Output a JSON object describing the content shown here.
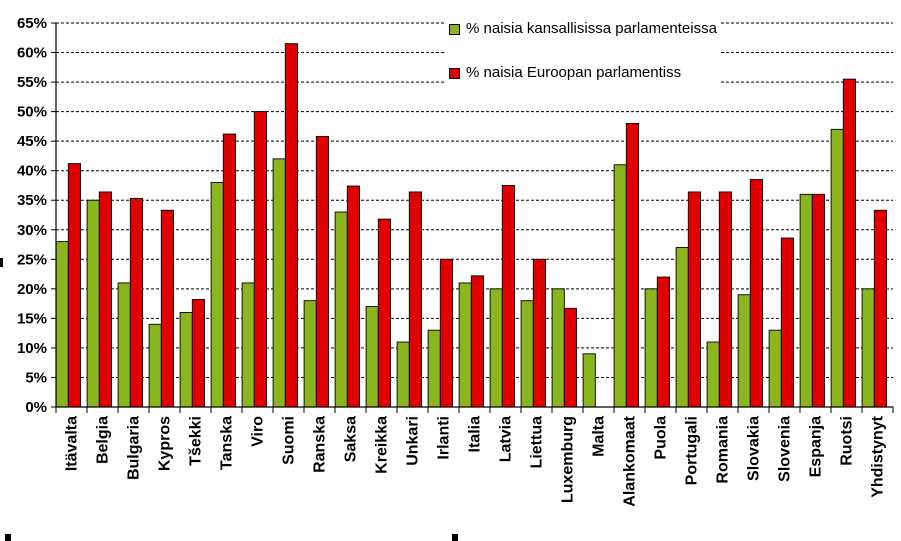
{
  "chart_data": {
    "type": "bar",
    "title": "",
    "xlabel": "",
    "ylabel": "",
    "ylim": [
      0,
      65
    ],
    "y_ticks": [
      "0%",
      "5%",
      "10%",
      "15%",
      "20%",
      "25%",
      "30%",
      "35%",
      "40%",
      "45%",
      "50%",
      "55%",
      "60%",
      "65%"
    ],
    "grid": "horizontal dashed",
    "legend_position": "top-center",
    "categories": [
      "Itävalta",
      "Belgia",
      "Bulgaria",
      "Kypros",
      "Tšekki",
      "Tanska",
      "Viro",
      "Suomi",
      "Ranska",
      "Saksa",
      "Kreikka",
      "Unkari",
      "Irlanti",
      "Italia",
      "Latvia",
      "Liettua",
      "Luxemburg",
      "Malta",
      "Alankomaat",
      "Puola",
      "Portugali",
      "Romania",
      "Slovakia",
      "Slovenia",
      "Espanja",
      "Ruotsi",
      "Yhdistynyt"
    ],
    "series": [
      {
        "name": "% naisia kansallisissa parlamenteissa",
        "color": "#8ab51f",
        "values": [
          28,
          35,
          21,
          14,
          16,
          38,
          21,
          42,
          18,
          33,
          17,
          11,
          13,
          21,
          20,
          18,
          20,
          9,
          41,
          20,
          27,
          11,
          19,
          13,
          36,
          47,
          20
        ]
      },
      {
        "name": "% naisia Euroopan parlamentiss",
        "color": "#e00000",
        "values": [
          41.2,
          36.4,
          35.3,
          33.3,
          18.2,
          46.2,
          50,
          61.5,
          45.8,
          37.4,
          31.8,
          36.4,
          25,
          22.2,
          37.5,
          25,
          16.7,
          0,
          48,
          22,
          36.4,
          36.4,
          38.5,
          28.6,
          36,
          55.5,
          33.3
        ]
      }
    ]
  }
}
